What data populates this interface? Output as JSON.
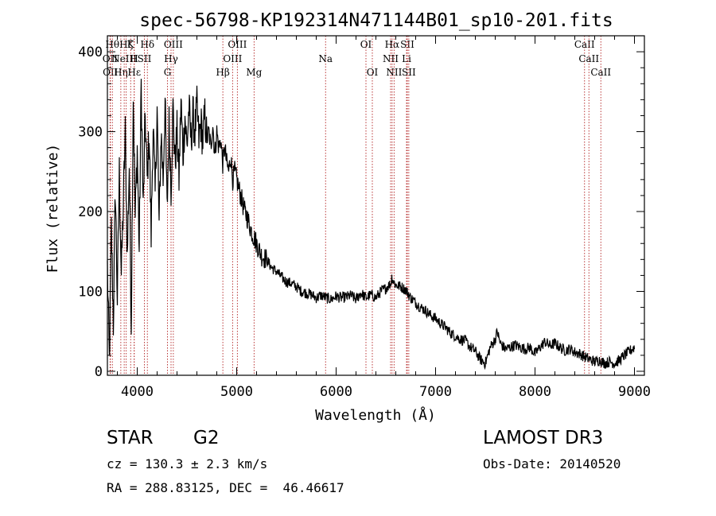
{
  "chart_data": {
    "type": "line",
    "title": "spec-56798-KP192314N471144B01_sp10-201.fits",
    "xlabel": "Wavelength (Å)",
    "ylabel": "Flux (relative)",
    "xlim": [
      3700,
      9100
    ],
    "ylim": [
      -5,
      420
    ],
    "x_ticks": [
      4000,
      5000,
      6000,
      7000,
      8000,
      9000
    ],
    "y_ticks": [
      0,
      100,
      200,
      300,
      400
    ],
    "grid": false,
    "series": [
      {
        "name": "spectrum",
        "x": [
          3700,
          3720,
          3740,
          3760,
          3780,
          3800,
          3820,
          3840,
          3860,
          3880,
          3900,
          3920,
          3940,
          3960,
          3980,
          4000,
          4020,
          4040,
          4060,
          4080,
          4100,
          4120,
          4140,
          4160,
          4180,
          4200,
          4220,
          4240,
          4260,
          4280,
          4300,
          4320,
          4340,
          4360,
          4380,
          4400,
          4420,
          4440,
          4460,
          4480,
          4500,
          4520,
          4540,
          4560,
          4580,
          4600,
          4620,
          4640,
          4660,
          4680,
          4700,
          4720,
          4740,
          4760,
          4780,
          4800,
          4820,
          4840,
          4860,
          4880,
          4900,
          4920,
          4940,
          4960,
          4980,
          5000,
          5020,
          5040,
          5060,
          5080,
          5100,
          5150,
          5200,
          5250,
          5300,
          5350,
          5400,
          5450,
          5500,
          5550,
          5600,
          5650,
          5700,
          5750,
          5800,
          5850,
          5900,
          5950,
          6000,
          6050,
          6100,
          6150,
          6200,
          6250,
          6300,
          6350,
          6400,
          6450,
          6500,
          6550,
          6560,
          6580,
          6600,
          6650,
          6700,
          6750,
          6800,
          6850,
          6900,
          6950,
          7000,
          7050,
          7100,
          7150,
          7200,
          7250,
          7300,
          7350,
          7400,
          7450,
          7500,
          7550,
          7600,
          7620,
          7650,
          7700,
          7750,
          7800,
          7850,
          7900,
          7950,
          8000,
          8050,
          8100,
          8150,
          8200,
          8250,
          8300,
          8350,
          8400,
          8450,
          8500,
          8550,
          8600,
          8650,
          8700,
          8750,
          8800,
          8850,
          8900,
          8950,
          9000
        ],
        "y": [
          130,
          10,
          180,
          60,
          230,
          90,
          250,
          120,
          210,
          300,
          140,
          260,
          60,
          350,
          190,
          280,
          150,
          360,
          200,
          320,
          240,
          300,
          170,
          310,
          220,
          330,
          180,
          300,
          240,
          340,
          200,
          310,
          230,
          330,
          260,
          300,
          240,
          340,
          270,
          320,
          280,
          330,
          290,
          320,
          300,
          330,
          290,
          310,
          290,
          320,
          290,
          300,
          280,
          310,
          270,
          300,
          280,
          290,
          260,
          280,
          260,
          250,
          270,
          240,
          250,
          240,
          230,
          220,
          210,
          200,
          195,
          175,
          160,
          145,
          140,
          130,
          125,
          118,
          112,
          110,
          106,
          100,
          98,
          96,
          92,
          95,
          92,
          90,
          94,
          92,
          93,
          95,
          90,
          98,
          92,
          96,
          92,
          100,
          104,
          110,
          118,
          112,
          108,
          106,
          102,
          92,
          86,
          80,
          76,
          70,
          66,
          60,
          55,
          48,
          44,
          40,
          38,
          30,
          25,
          15,
          10,
          30,
          40,
          50,
          35,
          28,
          30,
          33,
          30,
          28,
          30,
          22,
          30,
          37,
          32,
          35,
          30,
          26,
          28,
          24,
          22,
          18,
          15,
          12,
          14,
          10,
          12,
          10,
          14,
          20,
          25,
          30
        ]
      }
    ],
    "lines": [
      {
        "wl": 3727,
        "label": "OII",
        "row": 1
      },
      {
        "wl": 3730,
        "label": "OII",
        "row": 2
      },
      {
        "wl": 3750,
        "label": "Hθ",
        "row": 0
      },
      {
        "wl": 3835,
        "label": "Hη",
        "row": 2
      },
      {
        "wl": 3869,
        "label": "NeIII",
        "row": 1
      },
      {
        "wl": 3889,
        "label": "Hζ",
        "row": 0
      },
      {
        "wl": 3934,
        "label": "K",
        "row": 0
      },
      {
        "wl": 3969,
        "label": "H",
        "row": 1
      },
      {
        "wl": 3970,
        "label": "Hε",
        "row": 2
      },
      {
        "wl": 4072,
        "label": "SII",
        "row": 1
      },
      {
        "wl": 4102,
        "label": "Hδ",
        "row": 0
      },
      {
        "wl": 4304,
        "label": "G",
        "row": 2
      },
      {
        "wl": 4340,
        "label": "Hγ",
        "row": 1
      },
      {
        "wl": 4363,
        "label": "OIII",
        "row": 0
      },
      {
        "wl": 4861,
        "label": "Hβ",
        "row": 2
      },
      {
        "wl": 4959,
        "label": "OIII",
        "row": 1
      },
      {
        "wl": 5007,
        "label": "OIII",
        "row": 0
      },
      {
        "wl": 5175,
        "label": "Mg",
        "row": 2
      },
      {
        "wl": 5894,
        "label": "Na",
        "row": 1
      },
      {
        "wl": 6300,
        "label": "OI",
        "row": 0
      },
      {
        "wl": 6364,
        "label": "OI",
        "row": 2
      },
      {
        "wl": 6548,
        "label": "NII",
        "row": 1
      },
      {
        "wl": 6563,
        "label": "Hα",
        "row": 0
      },
      {
        "wl": 6583,
        "label": "NII",
        "row": 2
      },
      {
        "wl": 6708,
        "label": "Li",
        "row": 1
      },
      {
        "wl": 6716,
        "label": "SII",
        "row": 0
      },
      {
        "wl": 6731,
        "label": "SII",
        "row": 2
      },
      {
        "wl": 8498,
        "label": "CaII",
        "row": 0
      },
      {
        "wl": 8542,
        "label": "CaII",
        "row": 1
      },
      {
        "wl": 8662,
        "label": "CaII",
        "row": 2
      }
    ]
  },
  "info": {
    "class": "STAR",
    "subclass": "G2",
    "survey": "LAMOST DR3",
    "cz": "cz = 130.3 ± 2.3 km/s",
    "obs_date": "Obs-Date: 20140520",
    "coords": "RA = 288.83125, DEC =  46.46617"
  }
}
